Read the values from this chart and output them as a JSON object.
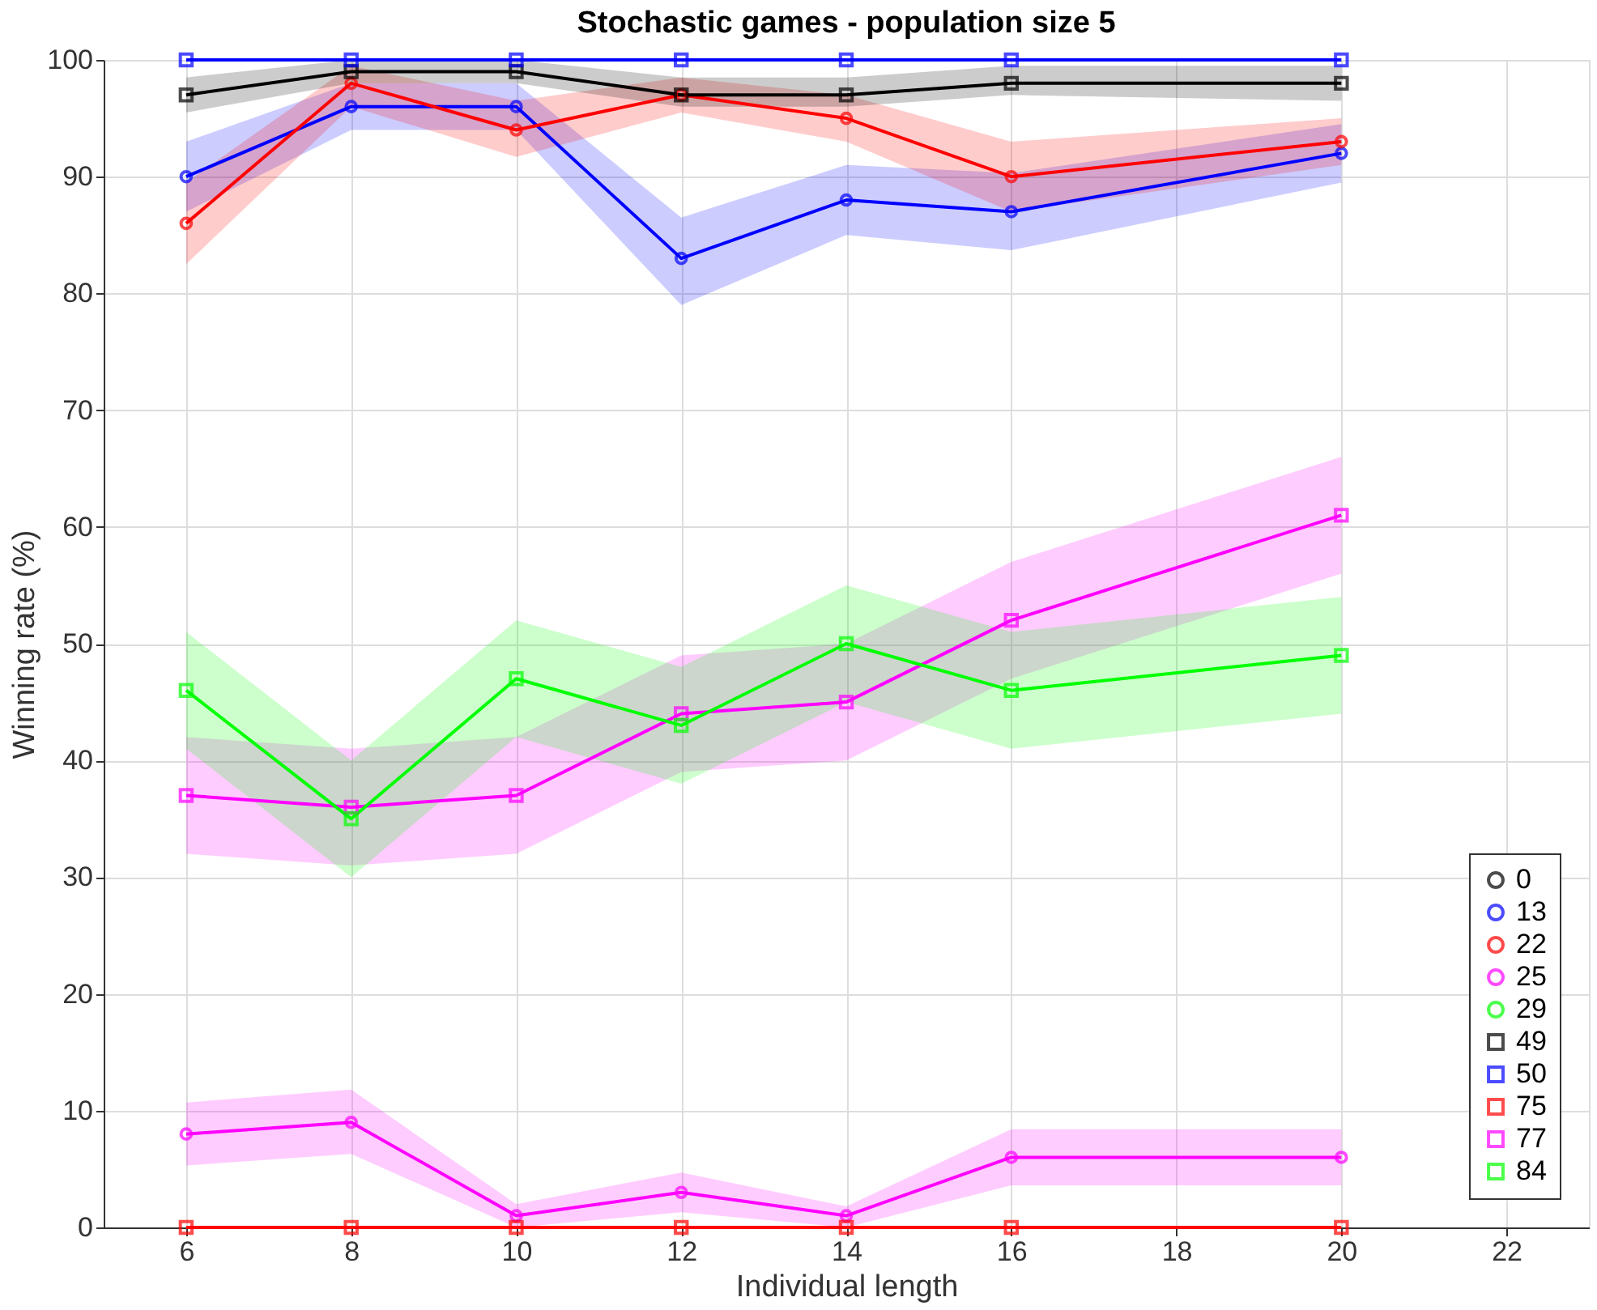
{
  "chart_data": {
    "type": "line",
    "title": "Stochastic games - population size 5",
    "xlabel": "Individual length",
    "ylabel": "Winning rate (%)",
    "x": [
      6,
      8,
      10,
      12,
      14,
      16,
      20
    ],
    "xlim": [
      5,
      23
    ],
    "xticks": [
      6,
      8,
      10,
      12,
      14,
      16,
      18,
      20,
      22
    ],
    "ylim": [
      0,
      100
    ],
    "yticks": [
      0,
      10,
      20,
      30,
      40,
      50,
      60,
      70,
      80,
      90,
      100
    ],
    "grid": true,
    "legend": "bottom right",
    "line_style": "solid",
    "series": [
      {
        "name": "0",
        "color": "#000000",
        "marker": "circle",
        "values": [
          null,
          null,
          null,
          null,
          null,
          null,
          null
        ]
      },
      {
        "name": "13",
        "color": "#0000ff",
        "marker": "circle",
        "values": [
          90,
          96,
          96,
          83,
          88,
          87,
          92
        ],
        "lower": [
          87,
          94,
          94,
          79,
          85,
          83.7,
          89.5
        ],
        "upper": [
          93,
          98,
          98,
          86.5,
          91,
          90.3,
          94.5
        ]
      },
      {
        "name": "22",
        "color": "#ff0000",
        "marker": "circle",
        "values": [
          86,
          98,
          94,
          97,
          95,
          90,
          93
        ],
        "lower": [
          82.5,
          96,
          91.7,
          95.5,
          93,
          87,
          91
        ],
        "upper": [
          89.5,
          99.5,
          96.5,
          98.5,
          97,
          93,
          95
        ]
      },
      {
        "name": "25",
        "color": "#ff00ff",
        "marker": "circle",
        "values": [
          8,
          9,
          1,
          3,
          1,
          6,
          6
        ],
        "lower": [
          5.3,
          6.3,
          0,
          1.3,
          0,
          3.6,
          3.6
        ],
        "upper": [
          10.7,
          11.8,
          2,
          4.7,
          1.8,
          8.4,
          8.4
        ]
      },
      {
        "name": "29",
        "color": "#00ff00",
        "marker": "circle",
        "values": [
          null,
          null,
          null,
          null,
          null,
          null,
          null
        ]
      },
      {
        "name": "49",
        "color": "#000000",
        "marker": "square",
        "values": [
          97,
          99,
          99,
          97,
          97,
          98,
          98
        ],
        "lower": [
          95.5,
          98,
          98,
          96,
          96,
          97,
          96.5
        ],
        "upper": [
          98.5,
          100,
          100,
          98.5,
          98.5,
          99.5,
          99.5
        ]
      },
      {
        "name": "50",
        "color": "#0000ff",
        "marker": "square",
        "values": [
          100,
          100,
          100,
          100,
          100,
          100,
          100
        ]
      },
      {
        "name": "75",
        "color": "#ff0000",
        "marker": "square",
        "values": [
          0,
          0,
          0,
          0,
          0,
          0,
          0
        ]
      },
      {
        "name": "77",
        "color": "#ff00ff",
        "marker": "square",
        "values": [
          37,
          36,
          37,
          44,
          45,
          52,
          61
        ],
        "lower": [
          32,
          31,
          32,
          39,
          40,
          47,
          56
        ],
        "upper": [
          42,
          41,
          42,
          49,
          50,
          57,
          66
        ]
      },
      {
        "name": "84",
        "color": "#00ff00",
        "marker": "square",
        "values": [
          46,
          35,
          47,
          43,
          50,
          46,
          49
        ],
        "lower": [
          41,
          30,
          42,
          38,
          45,
          41,
          44
        ],
        "upper": [
          51,
          40,
          52,
          48,
          55,
          51,
          54
        ]
      }
    ]
  }
}
